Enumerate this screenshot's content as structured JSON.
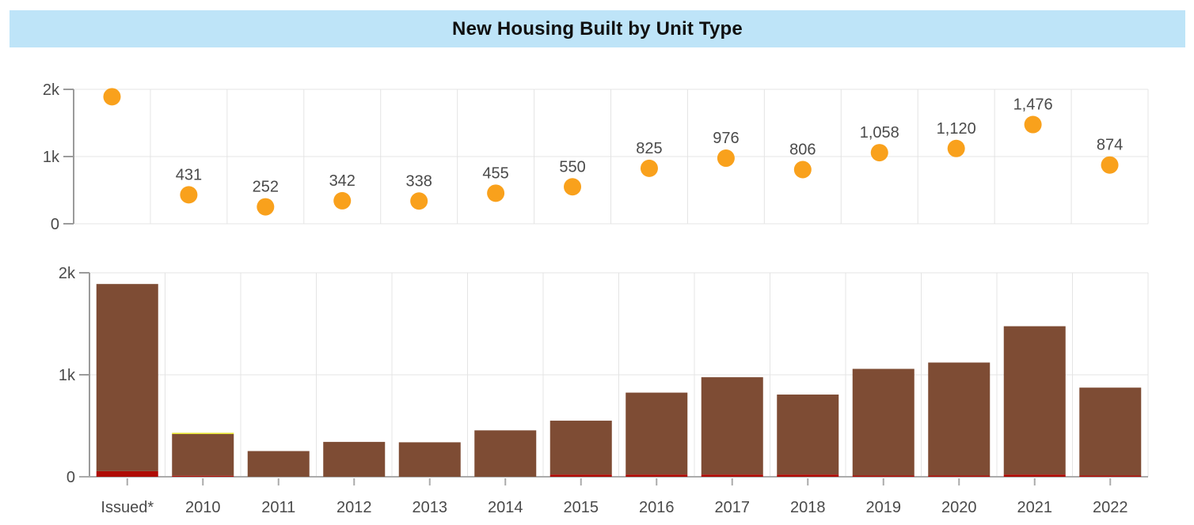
{
  "header": {
    "title": "New Housing Built by Unit Type"
  },
  "colors": {
    "banner_bg": "#BEE4F8",
    "title_text": "#101010",
    "marker_orange": "#F9A11C",
    "bar_brown": "#7E4C34",
    "bar_red": "#AE0B05",
    "bar_yellow": "#E6E22C",
    "grid": "#E4E4E4",
    "axis_dark": "#9B9B9B",
    "axis_light": "#ABABAB",
    "label_text": "#4A4A4A"
  },
  "chart_data": [
    {
      "type": "scatter",
      "title": "",
      "categories": [
        "Issued*",
        "2010",
        "2011",
        "2012",
        "2013",
        "2014",
        "2015",
        "2016",
        "2017",
        "2018",
        "2019",
        "2020",
        "2021",
        "2022"
      ],
      "values": [
        1890,
        431,
        252,
        342,
        338,
        455,
        550,
        825,
        976,
        806,
        1058,
        1120,
        1476,
        874
      ],
      "labels": [
        "",
        "431",
        "252",
        "342",
        "338",
        "455",
        "550",
        "825",
        "976",
        "806",
        "1,058",
        "1,120",
        "1,476",
        "874"
      ],
      "marker_color": "#F9A11C",
      "ylim": [
        0,
        2000
      ],
      "yticks": [
        {
          "label": "0",
          "value": 0
        },
        {
          "label": "1k",
          "value": 1000
        },
        {
          "label": "2k",
          "value": 2000
        }
      ],
      "grid": true,
      "legend": false,
      "x_axis_labels_shown": false
    },
    {
      "type": "bar",
      "stacked": true,
      "title": "",
      "categories": [
        "Issued*",
        "2010",
        "2011",
        "2012",
        "2013",
        "2014",
        "2015",
        "2016",
        "2017",
        "2018",
        "2019",
        "2020",
        "2021",
        "2022"
      ],
      "series": [
        {
          "name": "red",
          "color": "#AE0B05",
          "values": [
            55,
            10,
            0,
            0,
            0,
            0,
            22,
            22,
            22,
            22,
            12,
            12,
            22,
            12
          ]
        },
        {
          "name": "brown",
          "color": "#7E4C34",
          "values": [
            1835,
            409,
            252,
            342,
            338,
            455,
            528,
            803,
            954,
            784,
            1046,
            1108,
            1454,
            862
          ]
        },
        {
          "name": "yellow",
          "color": "#E6E22C",
          "values": [
            0,
            12,
            0,
            0,
            0,
            0,
            0,
            0,
            0,
            0,
            0,
            0,
            0,
            0
          ]
        }
      ],
      "totals": [
        1890,
        431,
        252,
        342,
        338,
        455,
        550,
        825,
        976,
        806,
        1058,
        1120,
        1476,
        874
      ],
      "ylim": [
        0,
        2000
      ],
      "yticks": [
        {
          "label": "0",
          "value": 0
        },
        {
          "label": "1k",
          "value": 1000
        },
        {
          "label": "2k",
          "value": 2000
        }
      ],
      "grid": true,
      "legend": false,
      "x_axis_labels_shown": true
    }
  ]
}
